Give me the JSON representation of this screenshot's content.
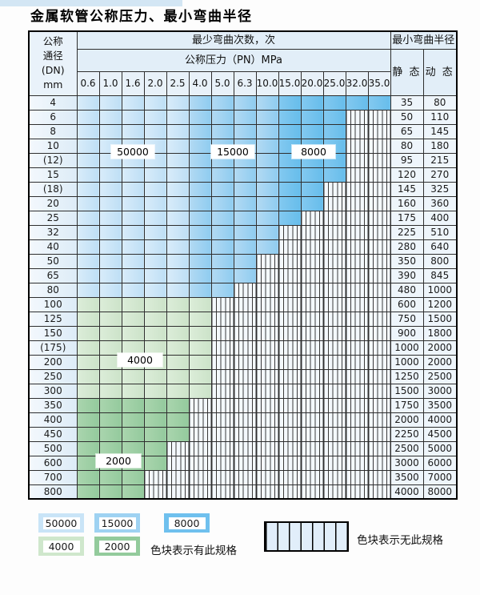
{
  "title": "金属软管公称压力、最小弯曲半径",
  "table": {
    "dn_header": "公称\n通径\n(DN)\nmm",
    "bend_cycles_header": "最少弯曲次数，次",
    "pressure_header": "公称压力（PN）MPa",
    "radius_header": "最小弯曲半径",
    "static_header": "静 态",
    "dynamic_header": "动 态",
    "pressures": [
      "0.6",
      "1.0",
      "1.6",
      "2.0",
      "2.5",
      "4.0",
      "5.0",
      "6.3",
      "10.0",
      "15.0",
      "20.0",
      "25.0",
      "32.0",
      "35.0"
    ],
    "rows": [
      {
        "dn": "4",
        "cover": 14,
        "band": "blue",
        "static": "35",
        "dynamic": "80"
      },
      {
        "dn": "6",
        "cover": 12,
        "band": "blue",
        "static": "50",
        "dynamic": "110"
      },
      {
        "dn": "8",
        "cover": 12,
        "band": "blue",
        "static": "65",
        "dynamic": "145"
      },
      {
        "dn": "10",
        "cover": 12,
        "band": "blue",
        "static": "80",
        "dynamic": "180"
      },
      {
        "dn": "(12)",
        "cover": 12,
        "band": "blue",
        "static": "95",
        "dynamic": "215"
      },
      {
        "dn": "15",
        "cover": 12,
        "band": "blue",
        "static": "120",
        "dynamic": "270"
      },
      {
        "dn": "(18)",
        "cover": 11,
        "band": "blue",
        "static": "145",
        "dynamic": "325"
      },
      {
        "dn": "20",
        "cover": 11,
        "band": "blue",
        "static": "160",
        "dynamic": "360"
      },
      {
        "dn": "25",
        "cover": 10,
        "band": "blue",
        "static": "175",
        "dynamic": "400"
      },
      {
        "dn": "32",
        "cover": 9,
        "band": "blue",
        "static": "225",
        "dynamic": "510"
      },
      {
        "dn": "40",
        "cover": 9,
        "band": "blue",
        "static": "280",
        "dynamic": "640"
      },
      {
        "dn": "50",
        "cover": 8,
        "band": "blue",
        "static": "350",
        "dynamic": "800"
      },
      {
        "dn": "65",
        "cover": 8,
        "band": "blue",
        "static": "390",
        "dynamic": "845"
      },
      {
        "dn": "80",
        "cover": 7,
        "band": "blue",
        "static": "480",
        "dynamic": "1000"
      },
      {
        "dn": "100",
        "cover": 6,
        "band": "g1",
        "static": "600",
        "dynamic": "1200"
      },
      {
        "dn": "125",
        "cover": 6,
        "band": "g1",
        "static": "750",
        "dynamic": "1500"
      },
      {
        "dn": "150",
        "cover": 6,
        "band": "g1",
        "static": "900",
        "dynamic": "1800"
      },
      {
        "dn": "(175)",
        "cover": 6,
        "band": "g1",
        "static": "1000",
        "dynamic": "2000"
      },
      {
        "dn": "200",
        "cover": 6,
        "band": "g1",
        "static": "1000",
        "dynamic": "2000"
      },
      {
        "dn": "250",
        "cover": 6,
        "band": "g1",
        "static": "1250",
        "dynamic": "2500"
      },
      {
        "dn": "300",
        "cover": 6,
        "band": "g1",
        "static": "1500",
        "dynamic": "3000"
      },
      {
        "dn": "350",
        "cover": 5,
        "band": "g2",
        "static": "1750",
        "dynamic": "3500"
      },
      {
        "dn": "400",
        "cover": 5,
        "band": "g2",
        "static": "2000",
        "dynamic": "4000"
      },
      {
        "dn": "450",
        "cover": 5,
        "band": "g2",
        "static": "2250",
        "dynamic": "4500"
      },
      {
        "dn": "500",
        "cover": 4,
        "band": "g2",
        "static": "2500",
        "dynamic": "5000"
      },
      {
        "dn": "600",
        "cover": 4,
        "band": "g2",
        "static": "3000",
        "dynamic": "6000"
      },
      {
        "dn": "700",
        "cover": 3,
        "band": "g2",
        "static": "3500",
        "dynamic": "7000"
      },
      {
        "dn": "800",
        "cover": 3,
        "band": "g2",
        "static": "4000",
        "dynamic": "8000"
      }
    ]
  },
  "region_labels": {
    "l50000": "50000",
    "l15000": "15000",
    "l8000": "8000",
    "l4000": "4000",
    "l2000": "2000"
  },
  "legend": {
    "items": [
      {
        "label": "50000",
        "color": "#c9e4f7"
      },
      {
        "label": "15000",
        "color": "#9ed2f2"
      },
      {
        "label": "8000",
        "color": "#6fc0ee"
      },
      {
        "label": "4000",
        "color": "#cfe7cc"
      },
      {
        "label": "2000",
        "color": "#93cb9c"
      }
    ],
    "has_spec_text": "色块表示有此规格",
    "no_spec_text": "色块表示无此规格"
  },
  "colors": {
    "cycles_50000": "#c9e4f7",
    "cycles_15000": "#9ed2f2",
    "cycles_8000": "#6fc0ee",
    "cycles_4000": "#cfe7cc",
    "cycles_2000": "#93cb9c",
    "header_bg": "#e2eef8",
    "border": "#2e2e2e"
  }
}
